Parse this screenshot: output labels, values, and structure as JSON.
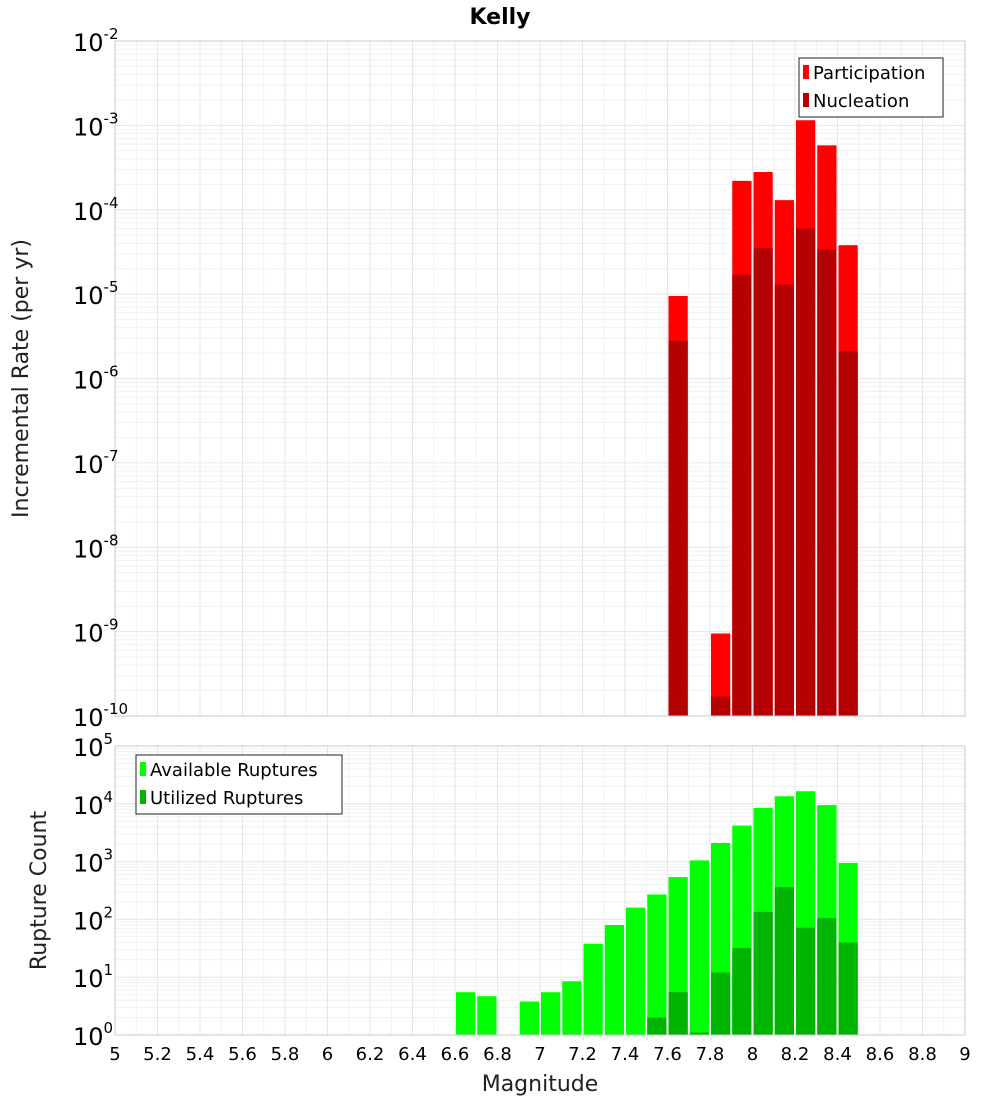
{
  "title": "Kelly",
  "chart_data": [
    {
      "type": "bar",
      "ylabel": "Incremental Rate (per yr)",
      "xlabel": "",
      "yscale": "log",
      "ylim_exp": [
        -10,
        -2
      ],
      "xlim": [
        5,
        9
      ],
      "legend_position": "top-right",
      "series": [
        {
          "name": "Participation",
          "color": "#ff0000",
          "x": [
            7.65,
            7.85,
            7.95,
            8.05,
            8.15,
            8.25,
            8.35,
            8.45
          ],
          "values": [
            9.5e-06,
            9.5e-10,
            0.00022,
            0.00028,
            0.00013,
            0.00115,
            0.00058,
            3.8e-05
          ]
        },
        {
          "name": "Nucleation",
          "color": "#b30000",
          "x": [
            7.65,
            7.85,
            7.95,
            8.05,
            8.15,
            8.25,
            8.35,
            8.45
          ],
          "values": [
            2.8e-06,
            1.7e-10,
            1.7e-05,
            3.5e-05,
            1.3e-05,
            6e-05,
            3.4e-05,
            2.1e-06
          ]
        }
      ]
    },
    {
      "type": "bar",
      "ylabel": "Rupture Count",
      "xlabel": "Magnitude",
      "yscale": "log",
      "ylim_exp": [
        0,
        5
      ],
      "xlim": [
        5,
        9
      ],
      "x_ticks": [
        "5",
        "5.2",
        "5.4",
        "5.6",
        "5.8",
        "6",
        "6.2",
        "6.4",
        "6.6",
        "6.8",
        "7",
        "7.2",
        "7.4",
        "7.6",
        "7.8",
        "8",
        "8.2",
        "8.4",
        "8.6",
        "8.8",
        "9"
      ],
      "legend_position": "top-left",
      "series": [
        {
          "name": "Available Ruptures",
          "color": "#00ff00",
          "x": [
            6.65,
            6.75,
            6.95,
            7.05,
            7.15,
            7.25,
            7.35,
            7.45,
            7.55,
            7.65,
            7.75,
            7.85,
            7.95,
            8.05,
            8.15,
            8.25,
            8.35,
            8.45
          ],
          "values": [
            5.5,
            4.7,
            3.8,
            5.5,
            8.5,
            38,
            80,
            160,
            270,
            540,
            1050,
            2100,
            4200,
            8500,
            13500,
            16500,
            9500,
            950
          ]
        },
        {
          "name": "Utilized Ruptures",
          "color": "#00b300",
          "x": [
            7.55,
            7.65,
            7.75,
            7.85,
            7.95,
            8.05,
            8.15,
            8.25,
            8.35,
            8.45
          ],
          "values": [
            2,
            5.5,
            1.1,
            12,
            32,
            135,
            360,
            72,
            105,
            40
          ]
        }
      ]
    }
  ]
}
